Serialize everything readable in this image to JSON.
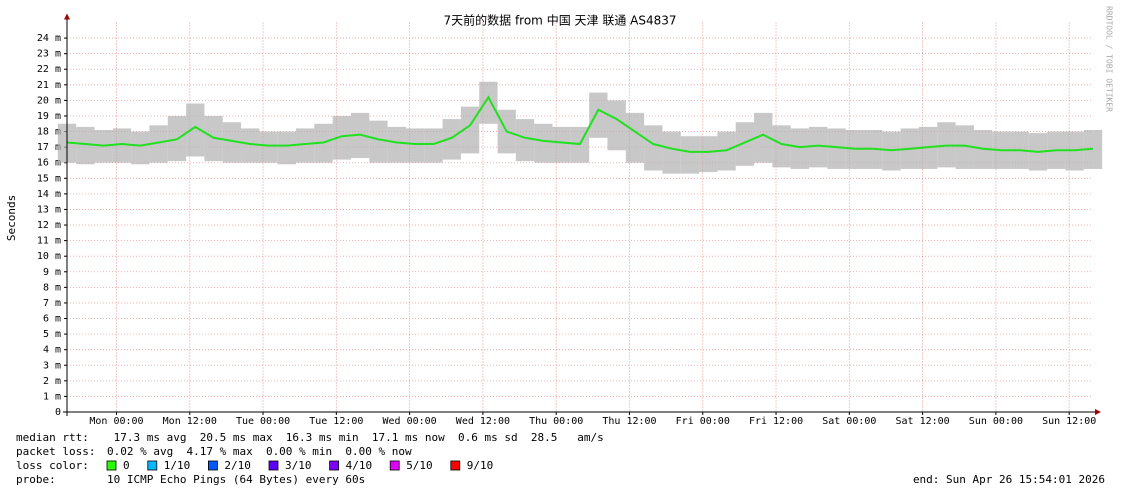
{
  "chart_data": {
    "type": "smokeping",
    "title": "7天前的数据 from 中国 天津 联通 AS4837",
    "y_label": "Seconds",
    "watermark": "RRDTOOL / TOBI OETIKER",
    "grid": true,
    "median_color": "#20e020",
    "smoke_color": "#b0b0b0",
    "xlim": [
      -8.1,
      159.9
    ],
    "xticks": [
      {
        "value": 0,
        "label": "Mon 00:00"
      },
      {
        "value": 12,
        "label": "Mon 12:00"
      },
      {
        "value": 24,
        "label": "Tue 00:00"
      },
      {
        "value": 36,
        "label": "Tue 12:00"
      },
      {
        "value": 48,
        "label": "Wed 00:00"
      },
      {
        "value": 60,
        "label": "Wed 12:00"
      },
      {
        "value": 72,
        "label": "Thu 00:00"
      },
      {
        "value": 84,
        "label": "Thu 12:00"
      },
      {
        "value": 96,
        "label": "Fri 00:00"
      },
      {
        "value": 108,
        "label": "Fri 12:00"
      },
      {
        "value": 120,
        "label": "Sat 00:00"
      },
      {
        "value": 132,
        "label": "Sat 12:00"
      },
      {
        "value": 144,
        "label": "Sun 00:00"
      },
      {
        "value": 156,
        "label": "Sun 12:00"
      }
    ],
    "ylim": [
      0,
      0.025
    ],
    "yticks": [
      0,
      {
        "value": 0.001,
        "label": "1 m"
      },
      {
        "value": 0.002,
        "label": "2 m"
      },
      {
        "value": 0.003,
        "label": "3 m"
      },
      {
        "value": 0.004,
        "label": "4 m"
      },
      {
        "value": 0.005,
        "label": "5 m"
      },
      {
        "value": 0.006,
        "label": "6 m"
      },
      {
        "value": 0.007,
        "label": "7 m"
      },
      {
        "value": 0.008,
        "label": "8 m"
      },
      {
        "value": 0.009,
        "label": "9 m"
      },
      {
        "value": 0.01,
        "label": "10 m"
      },
      {
        "value": 0.011,
        "label": "11 m"
      },
      {
        "value": 0.012,
        "label": "12 m"
      },
      {
        "value": 0.013,
        "label": "13 m"
      },
      {
        "value": 0.014,
        "label": "14 m"
      },
      {
        "value": 0.015,
        "label": "15 m"
      },
      {
        "value": 0.016,
        "label": "16 m"
      },
      {
        "value": 0.017,
        "label": "17 m"
      },
      {
        "value": 0.018,
        "label": "18 m"
      },
      {
        "value": 0.019,
        "label": "19 m"
      },
      {
        "value": 0.02,
        "label": "20 m"
      },
      {
        "value": 0.021,
        "label": "21 m"
      },
      {
        "value": 0.022,
        "label": "22 m"
      },
      {
        "value": 0.023,
        "label": "23 m"
      },
      {
        "value": 0.024,
        "label": "24 m"
      }
    ],
    "x": [
      -8.1,
      -5.1,
      -2.1,
      0.9,
      3.9,
      6.9,
      9.9,
      12.9,
      15.9,
      18.9,
      21.9,
      24.9,
      27.9,
      30.9,
      33.9,
      36.9,
      39.9,
      42.9,
      45.9,
      48.9,
      51.9,
      54.9,
      57.9,
      60.9,
      63.9,
      66.9,
      69.9,
      72.9,
      75.9,
      78.9,
      81.9,
      84.9,
      87.9,
      90.9,
      93.9,
      96.9,
      99.9,
      102.9,
      105.9,
      108.9,
      111.9,
      114.9,
      117.9,
      120.9,
      123.9,
      126.9,
      129.9,
      132.9,
      135.9,
      138.9,
      141.9,
      144.9,
      147.9,
      150.9,
      153.9,
      156.9,
      159.9
    ],
    "median": [
      0.0173,
      0.0172,
      0.0171,
      0.0172,
      0.0171,
      0.0173,
      0.0175,
      0.0183,
      0.0176,
      0.0174,
      0.0172,
      0.0171,
      0.0171,
      0.0172,
      0.0173,
      0.0177,
      0.0178,
      0.0175,
      0.0173,
      0.0172,
      0.0172,
      0.0176,
      0.0184,
      0.0202,
      0.018,
      0.0176,
      0.0174,
      0.0173,
      0.0172,
      0.0194,
      0.0188,
      0.018,
      0.0172,
      0.0169,
      0.0167,
      0.0167,
      0.0168,
      0.0173,
      0.0178,
      0.0172,
      0.017,
      0.0171,
      0.017,
      0.0169,
      0.0169,
      0.0168,
      0.0169,
      0.017,
      0.0171,
      0.0171,
      0.0169,
      0.0168,
      0.0168,
      0.0167,
      0.0168,
      0.0168,
      0.0169
    ],
    "smoke_min": [
      0.016,
      0.0159,
      0.016,
      0.016,
      0.0159,
      0.016,
      0.0161,
      0.0164,
      0.0161,
      0.016,
      0.016,
      0.016,
      0.0159,
      0.016,
      0.016,
      0.0162,
      0.0163,
      0.016,
      0.016,
      0.016,
      0.016,
      0.0162,
      0.0166,
      0.0185,
      0.0166,
      0.0161,
      0.016,
      0.016,
      0.016,
      0.0176,
      0.0168,
      0.016,
      0.0155,
      0.0153,
      0.0153,
      0.0154,
      0.0155,
      0.0158,
      0.016,
      0.0157,
      0.0156,
      0.0157,
      0.0156,
      0.0156,
      0.0156,
      0.0155,
      0.0156,
      0.0156,
      0.0157,
      0.0156,
      0.0156,
      0.0156,
      0.0156,
      0.0155,
      0.0156,
      0.0155,
      0.0156
    ],
    "smoke_max": [
      0.0185,
      0.0183,
      0.0181,
      0.0182,
      0.018,
      0.0184,
      0.019,
      0.0198,
      0.019,
      0.0186,
      0.0182,
      0.018,
      0.018,
      0.0182,
      0.0185,
      0.019,
      0.0192,
      0.0187,
      0.0183,
      0.0182,
      0.0182,
      0.0188,
      0.0196,
      0.0212,
      0.0194,
      0.0188,
      0.0185,
      0.0183,
      0.0183,
      0.0205,
      0.02,
      0.0192,
      0.0184,
      0.018,
      0.0177,
      0.0177,
      0.018,
      0.0186,
      0.0192,
      0.0184,
      0.0182,
      0.0183,
      0.0182,
      0.0181,
      0.0181,
      0.018,
      0.0182,
      0.0183,
      0.0186,
      0.0184,
      0.0181,
      0.018,
      0.018,
      0.0179,
      0.018,
      0.018,
      0.0181
    ],
    "stats": [
      [
        "median rtt:",
        " 17.3 ms avg  20.5 ms max  16.3 ms min  17.1 ms now  0.6 ms sd  28.5   am/s"
      ],
      [
        "packet loss:",
        "0.02 % avg  4.17 % max  0.00 % min  0.00 % now"
      ]
    ],
    "loss_label": "loss color:",
    "loss_colors": [
      {
        "label": "0",
        "color": "#26ff00"
      },
      {
        "label": "1/10",
        "color": "#00b8ff"
      },
      {
        "label": "2/10",
        "color": "#0059ff"
      },
      {
        "label": "3/10",
        "color": "#5e00ff"
      },
      {
        "label": "4/10",
        "color": "#7e00ff"
      },
      {
        "label": "5/10",
        "color": "#dd00ff"
      },
      {
        "label": "9/10",
        "color": "#ff0000"
      }
    ],
    "probe_label": "probe:",
    "probe": "10 ICMP Echo Pings (64 Bytes) every 60s",
    "end": "end: Sun Apr 26 15:54:01 2026"
  }
}
